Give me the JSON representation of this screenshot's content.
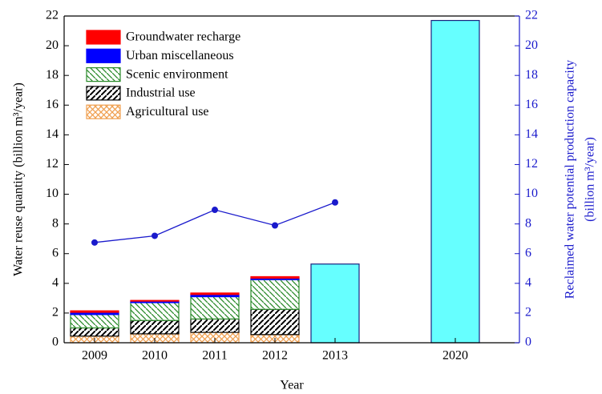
{
  "chart_data": {
    "type": "bar",
    "x_label": "Year",
    "y_label": "Water reuse quantity (billion m³/year)",
    "y2_label": [
      "Reclaimed water potential production capacity",
      "(billion m³/year)"
    ],
    "categories": [
      "2009",
      "2010",
      "2011",
      "2012",
      "2013",
      null,
      "2020"
    ],
    "series": [
      {
        "name": "Agricultural use",
        "color": "#f0a050",
        "pattern": "cross",
        "values": [
          0.45,
          0.6,
          0.7,
          0.55,
          null,
          null,
          null
        ]
      },
      {
        "name": "Industrial use",
        "color": "#000000",
        "pattern": "forward",
        "values": [
          0.55,
          0.9,
          0.9,
          1.7,
          null,
          null,
          null
        ]
      },
      {
        "name": "Scenic environment",
        "color": "#2a8a2a",
        "pattern": "back",
        "values": [
          0.9,
          1.2,
          1.5,
          2.0,
          null,
          null,
          null
        ]
      },
      {
        "name": "Urban miscellaneous",
        "color": "#0000ff",
        "pattern": "solid",
        "values": [
          0.15,
          0.1,
          0.15,
          0.1,
          null,
          null,
          null
        ]
      },
      {
        "name": "Groundwater recharge",
        "color": "#ff0000",
        "pattern": "solid",
        "values": [
          0.1,
          0.05,
          0.1,
          0.1,
          null,
          null,
          null
        ]
      },
      {
        "type": "bar",
        "axis": "y2",
        "color": "#66ffff",
        "edge": "#1a237e",
        "values": [
          null,
          null,
          null,
          null,
          5.3,
          null,
          21.7
        ]
      },
      {
        "type": "line",
        "axis": "y2",
        "color": "#1a1acc",
        "values": [
          6.75,
          7.2,
          8.95,
          7.9,
          9.45,
          null,
          null
        ]
      }
    ],
    "stacked": true,
    "legend": "upper left",
    "ylim": [
      0,
      22
    ],
    "yticks": [
      0,
      2,
      4,
      6,
      8,
      10,
      12,
      14,
      16,
      18,
      20,
      22
    ],
    "y2lim": [
      0,
      22
    ],
    "y2ticks": [
      0,
      2,
      4,
      6,
      8,
      10,
      12,
      14,
      16,
      18,
      20,
      22
    ],
    "y2_color": "#1a1acc"
  }
}
